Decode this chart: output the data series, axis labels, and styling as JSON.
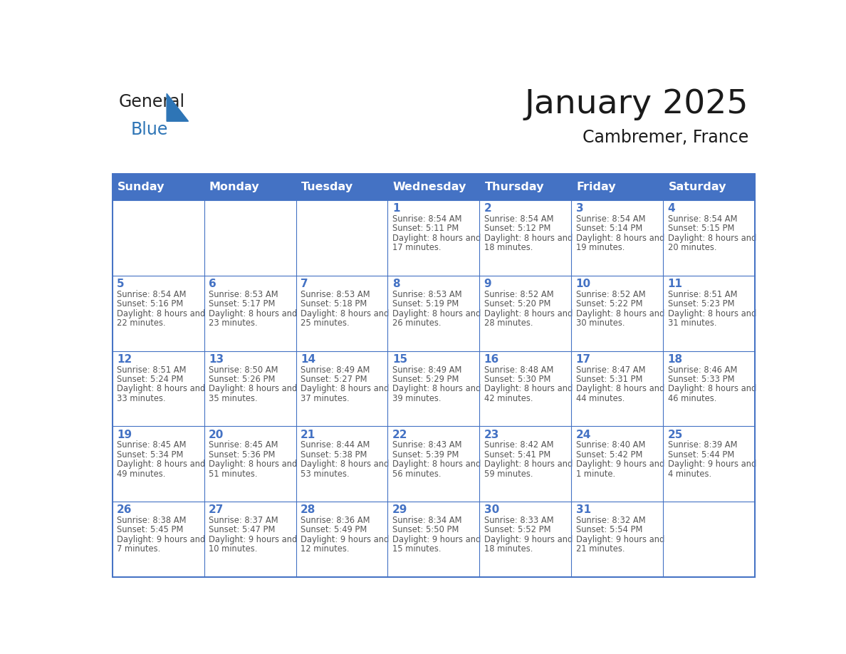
{
  "title": "January 2025",
  "subtitle": "Cambremer, France",
  "header_bg": "#4472C4",
  "header_text_color": "#FFFFFF",
  "day_number_color": "#4472C4",
  "text_color": "#555555",
  "grid_color": "#4472C4",
  "days_of_week": [
    "Sunday",
    "Monday",
    "Tuesday",
    "Wednesday",
    "Thursday",
    "Friday",
    "Saturday"
  ],
  "logo_general_color": "#222222",
  "logo_blue_color": "#2E75B6",
  "calendar_data": [
    [
      {
        "day": "",
        "sunrise": "",
        "sunset": "",
        "daylight": ""
      },
      {
        "day": "",
        "sunrise": "",
        "sunset": "",
        "daylight": ""
      },
      {
        "day": "",
        "sunrise": "",
        "sunset": "",
        "daylight": ""
      },
      {
        "day": "1",
        "sunrise": "8:54 AM",
        "sunset": "5:11 PM",
        "daylight": "8 hours and 17 minutes."
      },
      {
        "day": "2",
        "sunrise": "8:54 AM",
        "sunset": "5:12 PM",
        "daylight": "8 hours and 18 minutes."
      },
      {
        "day": "3",
        "sunrise": "8:54 AM",
        "sunset": "5:14 PM",
        "daylight": "8 hours and 19 minutes."
      },
      {
        "day": "4",
        "sunrise": "8:54 AM",
        "sunset": "5:15 PM",
        "daylight": "8 hours and 20 minutes."
      }
    ],
    [
      {
        "day": "5",
        "sunrise": "8:54 AM",
        "sunset": "5:16 PM",
        "daylight": "8 hours and 22 minutes."
      },
      {
        "day": "6",
        "sunrise": "8:53 AM",
        "sunset": "5:17 PM",
        "daylight": "8 hours and 23 minutes."
      },
      {
        "day": "7",
        "sunrise": "8:53 AM",
        "sunset": "5:18 PM",
        "daylight": "8 hours and 25 minutes."
      },
      {
        "day": "8",
        "sunrise": "8:53 AM",
        "sunset": "5:19 PM",
        "daylight": "8 hours and 26 minutes."
      },
      {
        "day": "9",
        "sunrise": "8:52 AM",
        "sunset": "5:20 PM",
        "daylight": "8 hours and 28 minutes."
      },
      {
        "day": "10",
        "sunrise": "8:52 AM",
        "sunset": "5:22 PM",
        "daylight": "8 hours and 30 minutes."
      },
      {
        "day": "11",
        "sunrise": "8:51 AM",
        "sunset": "5:23 PM",
        "daylight": "8 hours and 31 minutes."
      }
    ],
    [
      {
        "day": "12",
        "sunrise": "8:51 AM",
        "sunset": "5:24 PM",
        "daylight": "8 hours and 33 minutes."
      },
      {
        "day": "13",
        "sunrise": "8:50 AM",
        "sunset": "5:26 PM",
        "daylight": "8 hours and 35 minutes."
      },
      {
        "day": "14",
        "sunrise": "8:49 AM",
        "sunset": "5:27 PM",
        "daylight": "8 hours and 37 minutes."
      },
      {
        "day": "15",
        "sunrise": "8:49 AM",
        "sunset": "5:29 PM",
        "daylight": "8 hours and 39 minutes."
      },
      {
        "day": "16",
        "sunrise": "8:48 AM",
        "sunset": "5:30 PM",
        "daylight": "8 hours and 42 minutes."
      },
      {
        "day": "17",
        "sunrise": "8:47 AM",
        "sunset": "5:31 PM",
        "daylight": "8 hours and 44 minutes."
      },
      {
        "day": "18",
        "sunrise": "8:46 AM",
        "sunset": "5:33 PM",
        "daylight": "8 hours and 46 minutes."
      }
    ],
    [
      {
        "day": "19",
        "sunrise": "8:45 AM",
        "sunset": "5:34 PM",
        "daylight": "8 hours and 49 minutes."
      },
      {
        "day": "20",
        "sunrise": "8:45 AM",
        "sunset": "5:36 PM",
        "daylight": "8 hours and 51 minutes."
      },
      {
        "day": "21",
        "sunrise": "8:44 AM",
        "sunset": "5:38 PM",
        "daylight": "8 hours and 53 minutes."
      },
      {
        "day": "22",
        "sunrise": "8:43 AM",
        "sunset": "5:39 PM",
        "daylight": "8 hours and 56 minutes."
      },
      {
        "day": "23",
        "sunrise": "8:42 AM",
        "sunset": "5:41 PM",
        "daylight": "8 hours and 59 minutes."
      },
      {
        "day": "24",
        "sunrise": "8:40 AM",
        "sunset": "5:42 PM",
        "daylight": "9 hours and 1 minute."
      },
      {
        "day": "25",
        "sunrise": "8:39 AM",
        "sunset": "5:44 PM",
        "daylight": "9 hours and 4 minutes."
      }
    ],
    [
      {
        "day": "26",
        "sunrise": "8:38 AM",
        "sunset": "5:45 PM",
        "daylight": "9 hours and 7 minutes."
      },
      {
        "day": "27",
        "sunrise": "8:37 AM",
        "sunset": "5:47 PM",
        "daylight": "9 hours and 10 minutes."
      },
      {
        "day": "28",
        "sunrise": "8:36 AM",
        "sunset": "5:49 PM",
        "daylight": "9 hours and 12 minutes."
      },
      {
        "day": "29",
        "sunrise": "8:34 AM",
        "sunset": "5:50 PM",
        "daylight": "9 hours and 15 minutes."
      },
      {
        "day": "30",
        "sunrise": "8:33 AM",
        "sunset": "5:52 PM",
        "daylight": "9 hours and 18 minutes."
      },
      {
        "day": "31",
        "sunrise": "8:32 AM",
        "sunset": "5:54 PM",
        "daylight": "9 hours and 21 minutes."
      },
      {
        "day": "",
        "sunrise": "",
        "sunset": "",
        "daylight": ""
      }
    ]
  ]
}
